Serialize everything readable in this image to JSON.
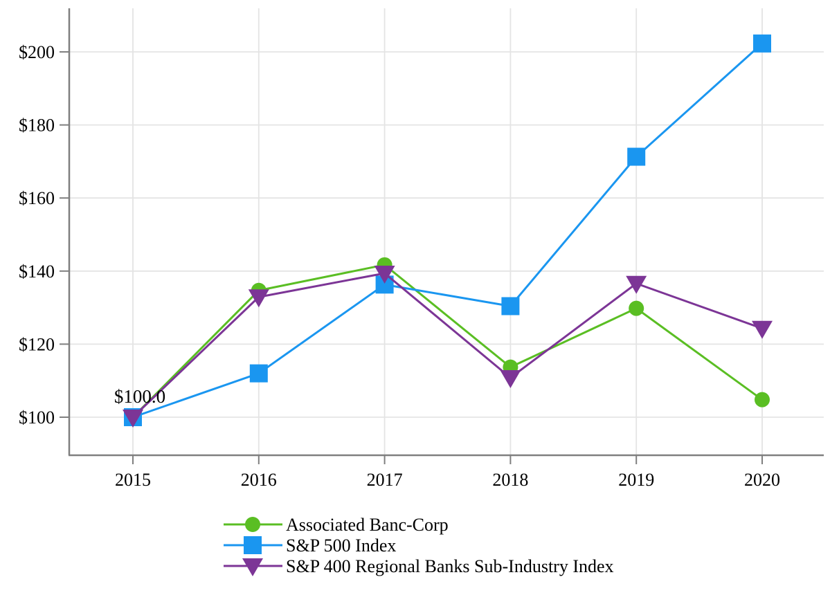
{
  "chart_data": {
    "type": "line",
    "title": "",
    "xlabel": "",
    "ylabel": "",
    "x_categories": [
      "2015",
      "2016",
      "2017",
      "2018",
      "2019",
      "2020"
    ],
    "y_tick_labels": [
      "$100",
      "$120",
      "$140",
      "$160",
      "$180",
      "$200"
    ],
    "y_tick_values": [
      100,
      120,
      140,
      160,
      180,
      200
    ],
    "ylim": [
      89,
      212
    ],
    "grid": true,
    "legend_position": "bottom-left",
    "annotation": {
      "text": "$100.0",
      "x_category": "2015",
      "y_value": 100.0
    },
    "series": [
      {
        "name": "Associated Banc-Corp",
        "marker": "circle",
        "color": "#5abe23",
        "values": [
          100.0,
          134.7,
          141.7,
          113.7,
          129.8,
          104.8
        ]
      },
      {
        "name": "S&P 500 Index",
        "marker": "square",
        "color": "#1a96f0",
        "values": [
          100.0,
          112.0,
          136.3,
          130.4,
          171.3,
          202.3
        ]
      },
      {
        "name": "S&P 400 Regional Banks Sub-Industry Index",
        "marker": "triangle-down",
        "color": "#7c3596",
        "values": [
          100.0,
          132.9,
          139.4,
          110.8,
          136.6,
          124.3
        ]
      }
    ],
    "colors": {
      "axis": "#7f7f7f",
      "grid": "#e4e4e4",
      "text": "#000000",
      "background": "#ffffff"
    }
  }
}
